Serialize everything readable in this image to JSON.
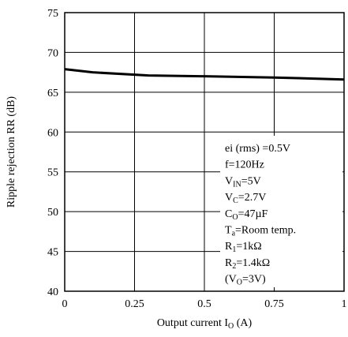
{
  "chart_data": {
    "type": "line",
    "xlabel": {
      "main": "Output current I",
      "sub": "O",
      "unit": " (A)"
    },
    "ylabel": "Ripple rejection RR (dB)",
    "xlim": [
      0,
      1
    ],
    "ylim": [
      40,
      75
    ],
    "x_ticks": [
      "0",
      "0.25",
      "0.5",
      "0.75",
      "1"
    ],
    "y_ticks": [
      "40",
      "45",
      "50",
      "55",
      "60",
      "65",
      "70",
      "75"
    ],
    "grid": true,
    "series": [
      {
        "x": [
          0,
          0.1,
          0.3,
          0.5,
          0.75,
          1.0
        ],
        "values": [
          67.9,
          67.5,
          67.1,
          67.0,
          66.85,
          66.6
        ]
      }
    ],
    "conditions": [
      {
        "main": "ei (rms) =0.5V",
        "sub": "",
        "rest": ""
      },
      {
        "main": "f=120Hz",
        "sub": "",
        "rest": ""
      },
      {
        "main": "V",
        "sub": "IN",
        "rest": "=5V"
      },
      {
        "main": "V",
        "sub": "C",
        "rest": "=2.7V"
      },
      {
        "main": "C",
        "sub": "O",
        "rest": "=47µF"
      },
      {
        "main": "T",
        "sub": "a",
        "rest": "=Room temp."
      },
      {
        "main": "R",
        "sub": "1",
        "rest": "=1kΩ"
      },
      {
        "main": "R",
        "sub": "2",
        "rest": "=1.4kΩ"
      },
      {
        "main": "(V",
        "sub": "O",
        "rest": "=3V)"
      }
    ]
  }
}
